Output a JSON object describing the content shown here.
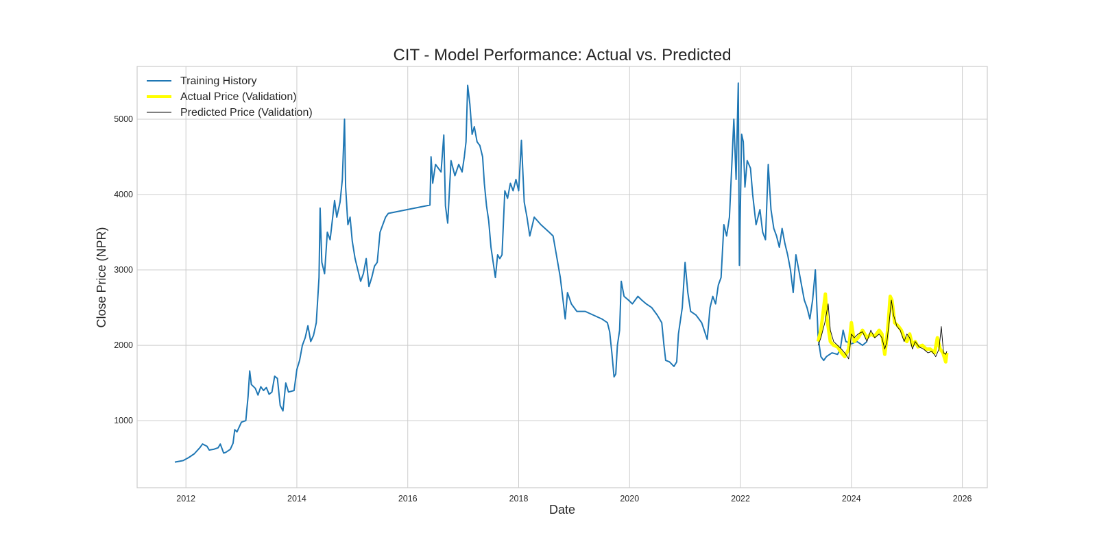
{
  "chart_data": {
    "type": "line",
    "title": "CIT - Model Performance: Actual vs. Predicted",
    "xlabel": "Date",
    "ylabel": "Close Price (NPR)",
    "xlim": [
      2011.12,
      2026.45
    ],
    "ylim": [
      110,
      5700
    ],
    "x_ticks": [
      2012,
      2014,
      2016,
      2018,
      2020,
      2022,
      2024,
      2026
    ],
    "x_tick_labels": [
      "2012",
      "2014",
      "2016",
      "2018",
      "2020",
      "2022",
      "2024",
      "2026"
    ],
    "y_ticks": [
      1000,
      2000,
      3000,
      4000,
      5000
    ],
    "y_tick_labels": [
      "1000",
      "2000",
      "3000",
      "4000",
      "5000"
    ],
    "grid": true,
    "legend_position": "top-left",
    "series": [
      {
        "name": "Training History",
        "color": "#1f77b4",
        "points": [
          [
            2011.8,
            450
          ],
          [
            2011.95,
            470
          ],
          [
            2012.05,
            510
          ],
          [
            2012.15,
            560
          ],
          [
            2012.25,
            640
          ],
          [
            2012.3,
            690
          ],
          [
            2012.38,
            660
          ],
          [
            2012.42,
            610
          ],
          [
            2012.5,
            620
          ],
          [
            2012.58,
            640
          ],
          [
            2012.62,
            690
          ],
          [
            2012.68,
            570
          ],
          [
            2012.72,
            580
          ],
          [
            2012.8,
            620
          ],
          [
            2012.85,
            700
          ],
          [
            2012.88,
            880
          ],
          [
            2012.92,
            850
          ],
          [
            2012.97,
            930
          ],
          [
            2013.0,
            980
          ],
          [
            2013.08,
            1000
          ],
          [
            2013.12,
            1320
          ],
          [
            2013.15,
            1660
          ],
          [
            2013.18,
            1480
          ],
          [
            2013.25,
            1430
          ],
          [
            2013.3,
            1340
          ],
          [
            2013.35,
            1450
          ],
          [
            2013.4,
            1400
          ],
          [
            2013.45,
            1440
          ],
          [
            2013.5,
            1350
          ],
          [
            2013.55,
            1380
          ],
          [
            2013.6,
            1590
          ],
          [
            2013.65,
            1560
          ],
          [
            2013.7,
            1200
          ],
          [
            2013.75,
            1130
          ],
          [
            2013.8,
            1500
          ],
          [
            2013.85,
            1380
          ],
          [
            2013.95,
            1400
          ],
          [
            2014.0,
            1680
          ],
          [
            2014.05,
            1800
          ],
          [
            2014.1,
            2000
          ],
          [
            2014.15,
            2100
          ],
          [
            2014.2,
            2260
          ],
          [
            2014.25,
            2050
          ],
          [
            2014.3,
            2130
          ],
          [
            2014.35,
            2300
          ],
          [
            2014.4,
            2900
          ],
          [
            2014.42,
            3820
          ],
          [
            2014.45,
            3100
          ],
          [
            2014.5,
            2950
          ],
          [
            2014.55,
            3500
          ],
          [
            2014.6,
            3400
          ],
          [
            2014.68,
            3920
          ],
          [
            2014.72,
            3700
          ],
          [
            2014.78,
            3900
          ],
          [
            2014.82,
            4200
          ],
          [
            2014.86,
            5000
          ],
          [
            2014.88,
            4100
          ],
          [
            2014.92,
            3600
          ],
          [
            2014.96,
            3700
          ],
          [
            2015.0,
            3380
          ],
          [
            2015.05,
            3150
          ],
          [
            2015.1,
            3000
          ],
          [
            2015.15,
            2850
          ],
          [
            2015.2,
            2950
          ],
          [
            2015.25,
            3150
          ],
          [
            2015.3,
            2780
          ],
          [
            2015.35,
            2900
          ],
          [
            2015.4,
            3050
          ],
          [
            2015.45,
            3100
          ],
          [
            2015.5,
            3500
          ],
          [
            2015.55,
            3600
          ],
          [
            2015.6,
            3700
          ],
          [
            2015.65,
            3750
          ],
          [
            2016.4,
            3860
          ],
          [
            2016.42,
            4500
          ],
          [
            2016.45,
            4150
          ],
          [
            2016.5,
            4400
          ],
          [
            2016.55,
            4350
          ],
          [
            2016.6,
            4300
          ],
          [
            2016.65,
            4790
          ],
          [
            2016.68,
            3850
          ],
          [
            2016.72,
            3620
          ],
          [
            2016.78,
            4450
          ],
          [
            2016.85,
            4250
          ],
          [
            2016.92,
            4400
          ],
          [
            2016.98,
            4300
          ],
          [
            2017.02,
            4500
          ],
          [
            2017.05,
            4700
          ],
          [
            2017.08,
            5450
          ],
          [
            2017.12,
            5200
          ],
          [
            2017.16,
            4800
          ],
          [
            2017.2,
            4900
          ],
          [
            2017.25,
            4700
          ],
          [
            2017.3,
            4650
          ],
          [
            2017.35,
            4500
          ],
          [
            2017.38,
            4150
          ],
          [
            2017.42,
            3850
          ],
          [
            2017.46,
            3650
          ],
          [
            2017.5,
            3300
          ],
          [
            2017.55,
            3050
          ],
          [
            2017.58,
            2900
          ],
          [
            2017.62,
            3200
          ],
          [
            2017.66,
            3150
          ],
          [
            2017.7,
            3200
          ],
          [
            2017.75,
            4050
          ],
          [
            2017.8,
            3950
          ],
          [
            2017.85,
            4150
          ],
          [
            2017.9,
            4050
          ],
          [
            2017.95,
            4200
          ],
          [
            2018.0,
            4050
          ],
          [
            2018.05,
            4720
          ],
          [
            2018.1,
            3900
          ],
          [
            2018.15,
            3700
          ],
          [
            2018.2,
            3450
          ],
          [
            2018.28,
            3700
          ],
          [
            2018.4,
            3600
          ],
          [
            2018.55,
            3500
          ],
          [
            2018.62,
            3450
          ],
          [
            2018.68,
            3200
          ],
          [
            2018.75,
            2900
          ],
          [
            2018.8,
            2600
          ],
          [
            2018.84,
            2350
          ],
          [
            2018.88,
            2700
          ],
          [
            2018.95,
            2550
          ],
          [
            2019.05,
            2450
          ],
          [
            2019.2,
            2450
          ],
          [
            2019.35,
            2400
          ],
          [
            2019.5,
            2350
          ],
          [
            2019.6,
            2300
          ],
          [
            2019.64,
            2180
          ],
          [
            2019.68,
            1900
          ],
          [
            2019.72,
            1580
          ],
          [
            2019.75,
            1620
          ],
          [
            2019.78,
            2000
          ],
          [
            2019.82,
            2200
          ],
          [
            2019.85,
            2850
          ],
          [
            2019.9,
            2650
          ],
          [
            2019.98,
            2600
          ],
          [
            2020.05,
            2550
          ],
          [
            2020.15,
            2650
          ],
          [
            2020.22,
            2600
          ],
          [
            2020.3,
            2550
          ],
          [
            2020.4,
            2500
          ],
          [
            2020.5,
            2400
          ],
          [
            2020.58,
            2300
          ],
          [
            2020.62,
            2000
          ],
          [
            2020.65,
            1800
          ],
          [
            2020.72,
            1780
          ],
          [
            2020.8,
            1720
          ],
          [
            2020.85,
            1780
          ],
          [
            2020.88,
            2150
          ],
          [
            2020.95,
            2500
          ],
          [
            2021.0,
            3100
          ],
          [
            2021.05,
            2700
          ],
          [
            2021.1,
            2450
          ],
          [
            2021.2,
            2400
          ],
          [
            2021.3,
            2300
          ],
          [
            2021.4,
            2080
          ],
          [
            2021.45,
            2500
          ],
          [
            2021.5,
            2650
          ],
          [
            2021.55,
            2550
          ],
          [
            2021.6,
            2800
          ],
          [
            2021.65,
            2900
          ],
          [
            2021.7,
            3600
          ],
          [
            2021.75,
            3450
          ],
          [
            2021.8,
            3700
          ],
          [
            2021.85,
            4500
          ],
          [
            2021.88,
            5000
          ],
          [
            2021.92,
            4200
          ],
          [
            2021.96,
            5480
          ],
          [
            2021.98,
            3060
          ],
          [
            2022.02,
            4800
          ],
          [
            2022.05,
            4700
          ],
          [
            2022.08,
            4100
          ],
          [
            2022.12,
            4450
          ],
          [
            2022.18,
            4350
          ],
          [
            2022.22,
            4000
          ],
          [
            2022.28,
            3600
          ],
          [
            2022.35,
            3800
          ],
          [
            2022.4,
            3500
          ],
          [
            2022.45,
            3400
          ],
          [
            2022.5,
            4400
          ],
          [
            2022.55,
            3800
          ],
          [
            2022.6,
            3550
          ],
          [
            2022.65,
            3450
          ],
          [
            2022.7,
            3300
          ],
          [
            2022.75,
            3550
          ],
          [
            2022.8,
            3350
          ],
          [
            2022.85,
            3200
          ],
          [
            2022.9,
            3000
          ],
          [
            2022.95,
            2700
          ],
          [
            2023.0,
            3200
          ],
          [
            2023.05,
            3000
          ],
          [
            2023.1,
            2800
          ],
          [
            2023.15,
            2600
          ],
          [
            2023.2,
            2500
          ],
          [
            2023.25,
            2350
          ],
          [
            2023.3,
            2600
          ],
          [
            2023.35,
            3000
          ],
          [
            2023.4,
            2100
          ],
          [
            2023.45,
            1850
          ],
          [
            2023.5,
            1800
          ],
          [
            2023.55,
            1850
          ],
          [
            2023.65,
            1900
          ],
          [
            2023.75,
            1880
          ],
          [
            2023.8,
            1950
          ],
          [
            2023.85,
            2200
          ],
          [
            2023.9,
            2050
          ],
          [
            2024.0,
            2020
          ],
          [
            2024.1,
            2050
          ],
          [
            2024.2,
            2000
          ],
          [
            2024.28,
            2050
          ]
        ]
      },
      {
        "name": "Actual Price (Validation)",
        "color": "#ffff00",
        "points": [
          [
            2023.4,
            2050
          ],
          [
            2023.45,
            2200
          ],
          [
            2023.5,
            2500
          ],
          [
            2023.53,
            2680
          ],
          [
            2023.56,
            2350
          ],
          [
            2023.62,
            2050
          ],
          [
            2023.68,
            2000
          ],
          [
            2023.75,
            1980
          ],
          [
            2023.82,
            1900
          ],
          [
            2023.88,
            1850
          ],
          [
            2023.95,
            1950
          ],
          [
            2024.0,
            2300
          ],
          [
            2024.05,
            2050
          ],
          [
            2024.12,
            2100
          ],
          [
            2024.2,
            2200
          ],
          [
            2024.28,
            2100
          ],
          [
            2024.35,
            2150
          ],
          [
            2024.42,
            2120
          ],
          [
            2024.5,
            2200
          ],
          [
            2024.55,
            2150
          ],
          [
            2024.6,
            1880
          ],
          [
            2024.64,
            2100
          ],
          [
            2024.67,
            2350
          ],
          [
            2024.7,
            2650
          ],
          [
            2024.73,
            2600
          ],
          [
            2024.78,
            2300
          ],
          [
            2024.85,
            2250
          ],
          [
            2024.9,
            2200
          ],
          [
            2024.95,
            2100
          ],
          [
            2025.0,
            2050
          ],
          [
            2025.05,
            2150
          ],
          [
            2025.1,
            2000
          ],
          [
            2025.15,
            2050
          ],
          [
            2025.2,
            1980
          ],
          [
            2025.28,
            2000
          ],
          [
            2025.35,
            1950
          ],
          [
            2025.42,
            1950
          ],
          [
            2025.5,
            1900
          ],
          [
            2025.55,
            2100
          ],
          [
            2025.6,
            1950
          ],
          [
            2025.65,
            1900
          ],
          [
            2025.7,
            1780
          ],
          [
            2025.72,
            1900
          ]
        ]
      },
      {
        "name": "Predicted Price (Validation)",
        "color": "#000000",
        "points": [
          [
            2023.4,
            2000
          ],
          [
            2023.45,
            2100
          ],
          [
            2023.52,
            2300
          ],
          [
            2023.58,
            2550
          ],
          [
            2023.62,
            2200
          ],
          [
            2023.68,
            2050
          ],
          [
            2023.75,
            2000
          ],
          [
            2023.82,
            1950
          ],
          [
            2023.9,
            1880
          ],
          [
            2023.95,
            1820
          ],
          [
            2024.0,
            2150
          ],
          [
            2024.05,
            2100
          ],
          [
            2024.12,
            2150
          ],
          [
            2024.2,
            2180
          ],
          [
            2024.28,
            2050
          ],
          [
            2024.35,
            2200
          ],
          [
            2024.42,
            2100
          ],
          [
            2024.5,
            2150
          ],
          [
            2024.55,
            2100
          ],
          [
            2024.6,
            1950
          ],
          [
            2024.64,
            2050
          ],
          [
            2024.68,
            2300
          ],
          [
            2024.72,
            2600
          ],
          [
            2024.76,
            2400
          ],
          [
            2024.82,
            2250
          ],
          [
            2024.88,
            2200
          ],
          [
            2024.95,
            2050
          ],
          [
            2025.0,
            2150
          ],
          [
            2025.05,
            2100
          ],
          [
            2025.1,
            1950
          ],
          [
            2025.15,
            2050
          ],
          [
            2025.22,
            1980
          ],
          [
            2025.3,
            1950
          ],
          [
            2025.38,
            1900
          ],
          [
            2025.45,
            1920
          ],
          [
            2025.52,
            1850
          ],
          [
            2025.58,
            1950
          ],
          [
            2025.62,
            2250
          ],
          [
            2025.66,
            1900
          ],
          [
            2025.7,
            1880
          ],
          [
            2025.72,
            1920
          ]
        ]
      }
    ]
  }
}
